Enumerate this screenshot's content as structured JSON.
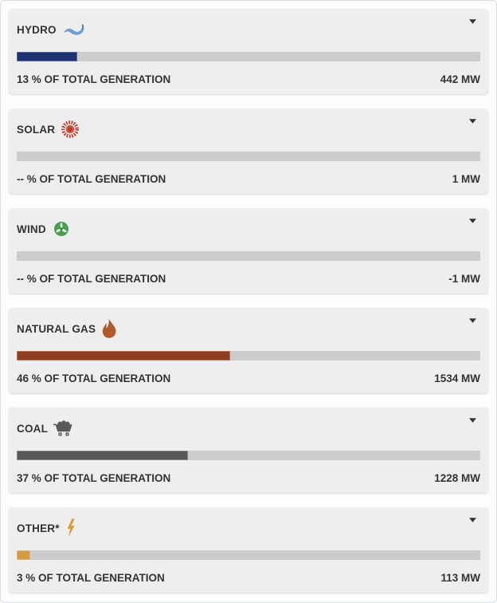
{
  "colors": {
    "card_background": "#eeeeee",
    "bar_track": "#cccccc",
    "text": "#333333",
    "hydro_bar": "#1f3274",
    "natural_gas_bar": "#8e3d20",
    "coal_bar": "#595959",
    "other_bar": "#d59a45"
  },
  "cards": [
    {
      "id": "hydro",
      "label": "HYDRO",
      "icon": "water-wave-icon",
      "percent": 13,
      "percent_label": "13 % OF TOTAL GENERATION",
      "mw_label": "442 MW",
      "bar_color": "#1f3274"
    },
    {
      "id": "solar",
      "label": "SOLAR",
      "icon": "sun-icon",
      "percent": null,
      "percent_label": "-- % OF TOTAL GENERATION",
      "mw_label": "1 MW",
      "bar_color": "#c0392b"
    },
    {
      "id": "wind",
      "label": "WIND",
      "icon": "wind-turbine-icon",
      "percent": null,
      "percent_label": "-- % OF TOTAL GENERATION",
      "mw_label": "-1 MW",
      "bar_color": "#4a9e4f"
    },
    {
      "id": "natural-gas",
      "label": "NATURAL GAS",
      "icon": "flame-icon",
      "percent": 46,
      "percent_label": "46 % OF TOTAL GENERATION",
      "mw_label": "1534 MW",
      "bar_color": "#8e3d20"
    },
    {
      "id": "coal",
      "label": "COAL",
      "icon": "coal-cart-icon",
      "percent": 37,
      "percent_label": "37 % OF TOTAL GENERATION",
      "mw_label": "1228 MW",
      "bar_color": "#595959"
    },
    {
      "id": "other",
      "label": "OTHER*",
      "icon": "lightning-bolt-icon",
      "percent": 3,
      "percent_label": "3 % OF TOTAL GENERATION",
      "mw_label": "113 MW",
      "bar_color": "#d59a45"
    }
  ],
  "chart_data": {
    "type": "bar",
    "categories": [
      "HYDRO",
      "SOLAR",
      "WIND",
      "NATURAL GAS",
      "COAL",
      "OTHER*"
    ],
    "series": [
      {
        "name": "Percent of total generation",
        "values": [
          13,
          null,
          null,
          46,
          37,
          3
        ]
      },
      {
        "name": "Megawatts",
        "values": [
          442,
          1,
          -1,
          1534,
          1228,
          113
        ]
      }
    ],
    "title": "",
    "xlabel": "",
    "ylabel": "% of total generation",
    "ylim": [
      0,
      100
    ],
    "legend_position": "none",
    "grid": false
  }
}
